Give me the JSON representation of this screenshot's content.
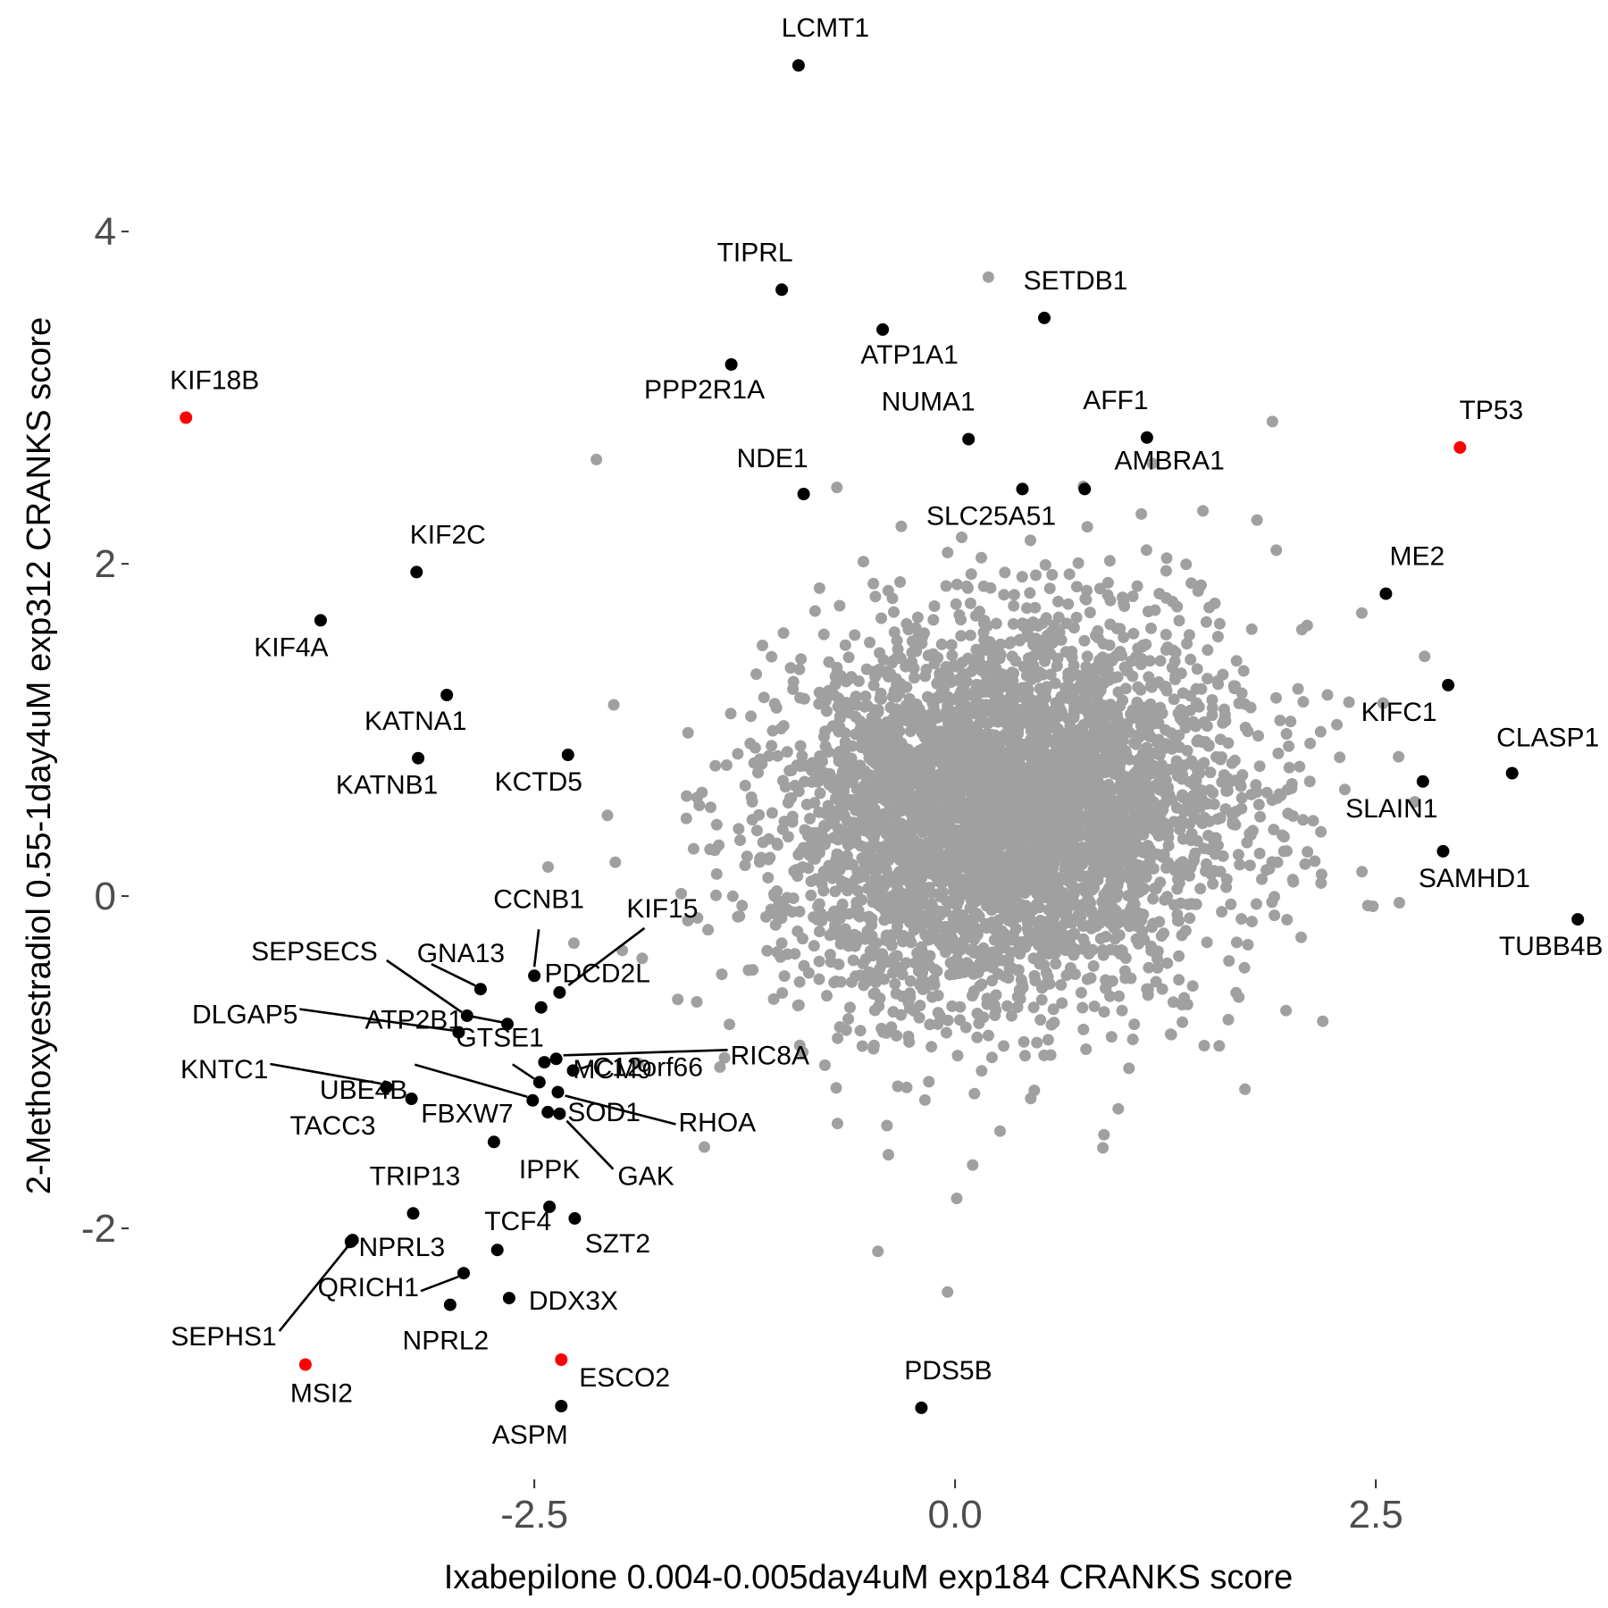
{
  "chart_data": {
    "type": "scatter",
    "xlabel": "Ixabepilone 0.004-0.005day4uM exp184 CRANKS score",
    "ylabel": "2-Methoxyestradiol 0.55-1day4uM exp312 CRANKS score",
    "xlim": [
      -4.9,
      3.8
    ],
    "ylim": [
      -3.5,
      5.2
    ],
    "xticks": [
      {
        "value": -2.5,
        "label": "-2.5"
      },
      {
        "value": 0.0,
        "label": "0.0"
      },
      {
        "value": 2.5,
        "label": "2.5"
      }
    ],
    "yticks": [
      {
        "value": -2,
        "label": "-2"
      },
      {
        "value": 0,
        "label": "0"
      },
      {
        "value": 2,
        "label": "2"
      },
      {
        "value": 4,
        "label": "4"
      }
    ],
    "grid": false,
    "legend": "none",
    "colors": {
      "background": "#ffffff",
      "points": "#a0a0a0",
      "highlight": "#000000",
      "flagged": "#ff0000"
    },
    "background_cloud": {
      "description_of_distribution": "bivariate cloud",
      "center": [
        0.3,
        0.5
      ],
      "sd": [
        0.65,
        0.55
      ],
      "approx_count": 15000,
      "color": "#a0a0a0"
    },
    "highlighted_points": [
      {
        "gene": "LCMT1",
        "x": -0.93,
        "y": 5.0,
        "color": "black"
      },
      {
        "gene": "TIPRL",
        "x": -1.03,
        "y": 3.65,
        "color": "black"
      },
      {
        "gene": "SETDB1",
        "x": 0.53,
        "y": 3.48,
        "color": "black"
      },
      {
        "gene": "ATP1A1",
        "x": -0.43,
        "y": 3.41,
        "color": "black"
      },
      {
        "gene": "PPP2R1A",
        "x": -1.33,
        "y": 3.2,
        "color": "black"
      },
      {
        "gene": "KIF18B",
        "x": -4.57,
        "y": 2.88,
        "color": "red"
      },
      {
        "gene": "NUMA1",
        "x": 0.08,
        "y": 2.75,
        "color": "black"
      },
      {
        "gene": "AFF1",
        "x": 1.14,
        "y": 2.76,
        "color": "black"
      },
      {
        "gene": "TP53",
        "x": 3.0,
        "y": 2.7,
        "color": "red"
      },
      {
        "gene": "NDE1",
        "x": -0.9,
        "y": 2.42,
        "color": "black"
      },
      {
        "gene": "SLC25A51",
        "x": 0.4,
        "y": 2.45,
        "color": "black"
      },
      {
        "gene": "AMBRA1",
        "x": 0.77,
        "y": 2.45,
        "color": "black"
      },
      {
        "gene": "KIF2C",
        "x": -3.2,
        "y": 1.95,
        "color": "black"
      },
      {
        "gene": "ME2",
        "x": 2.56,
        "y": 1.82,
        "color": "black"
      },
      {
        "gene": "KIF4A",
        "x": -3.77,
        "y": 1.66,
        "color": "black"
      },
      {
        "gene": "KIFC1",
        "x": 2.93,
        "y": 1.27,
        "color": "black"
      },
      {
        "gene": "KATNA1",
        "x": -3.02,
        "y": 1.21,
        "color": "black"
      },
      {
        "gene": "KATNB1",
        "x": -3.19,
        "y": 0.83,
        "color": "black"
      },
      {
        "gene": "KCTD5",
        "x": -2.3,
        "y": 0.85,
        "color": "black"
      },
      {
        "gene": "CLASP1",
        "x": 3.31,
        "y": 0.74,
        "color": "black"
      },
      {
        "gene": "SLAIN1",
        "x": 2.78,
        "y": 0.69,
        "color": "black"
      },
      {
        "gene": "SAMHD1",
        "x": 2.9,
        "y": 0.27,
        "color": "black"
      },
      {
        "gene": "TUBB4B",
        "x": 3.7,
        "y": -0.14,
        "color": "black"
      },
      {
        "gene": "CCNB1",
        "x": -2.5,
        "y": -0.48,
        "color": "black"
      },
      {
        "gene": "KIF15",
        "x": -2.35,
        "y": -0.58,
        "color": "black"
      },
      {
        "gene": "PDCD2L",
        "x": -2.46,
        "y": -0.67,
        "color": "black"
      },
      {
        "gene": "GNA13",
        "x": -2.82,
        "y": -0.56,
        "color": "black"
      },
      {
        "gene": "SEPSECS",
        "x": -2.9,
        "y": -0.72,
        "color": "black"
      },
      {
        "gene": "ATP2B1",
        "x": -2.66,
        "y": -0.77,
        "color": "black"
      },
      {
        "gene": "DLGAP5",
        "x": -2.95,
        "y": -0.82,
        "color": "black"
      },
      {
        "gene": "RIC8A",
        "x": -2.37,
        "y": -0.98,
        "color": "black"
      },
      {
        "gene": "MCM9",
        "x": -2.44,
        "y": -1.0,
        "color": "black"
      },
      {
        "gene": "C12orf66",
        "x": -2.27,
        "y": -1.05,
        "color": "black"
      },
      {
        "gene": "GTSE1",
        "x": -2.47,
        "y": -1.12,
        "color": "black"
      },
      {
        "gene": "RHOA",
        "x": -2.36,
        "y": -1.18,
        "color": "black"
      },
      {
        "gene": "UBE4B",
        "x": -2.51,
        "y": -1.23,
        "color": "black"
      },
      {
        "gene": "KNTC1",
        "x": -3.38,
        "y": -1.15,
        "color": "black"
      },
      {
        "gene": "TACC3",
        "x": -3.23,
        "y": -1.22,
        "color": "black"
      },
      {
        "gene": "SOD1",
        "x": -2.42,
        "y": -1.3,
        "color": "black"
      },
      {
        "gene": "GAK",
        "x": -2.35,
        "y": -1.31,
        "color": "black"
      },
      {
        "gene": "FBXW7",
        "x": -2.74,
        "y": -1.48,
        "color": "black"
      },
      {
        "gene": "TRIP13",
        "x": -3.22,
        "y": -1.91,
        "color": "black"
      },
      {
        "gene": "IPPK",
        "x": -2.41,
        "y": -1.87,
        "color": "black"
      },
      {
        "gene": "SZT2",
        "x": -2.26,
        "y": -1.94,
        "color": "black"
      },
      {
        "gene": "TCF4",
        "x": -2.72,
        "y": -2.13,
        "color": "black"
      },
      {
        "gene": "NPRL3",
        "x": -3.59,
        "y": -2.08,
        "color": "black"
      },
      {
        "gene": "QRICH1",
        "x": -2.92,
        "y": -2.27,
        "color": "black"
      },
      {
        "gene": "NPRL2",
        "x": -3.0,
        "y": -2.46,
        "color": "black"
      },
      {
        "gene": "DDX3X",
        "x": -2.65,
        "y": -2.42,
        "color": "black"
      },
      {
        "gene": "SEPHS1",
        "x": -3.58,
        "y": -2.07,
        "color": "black"
      },
      {
        "gene": "MSI2",
        "x": -3.86,
        "y": -2.82,
        "color": "red"
      },
      {
        "gene": "ESCO2",
        "x": -2.34,
        "y": -2.79,
        "color": "red"
      },
      {
        "gene": "ASPM",
        "x": -2.34,
        "y": -3.07,
        "color": "black"
      },
      {
        "gene": "PDS5B",
        "x": -0.2,
        "y": -3.08,
        "color": "black"
      }
    ]
  }
}
